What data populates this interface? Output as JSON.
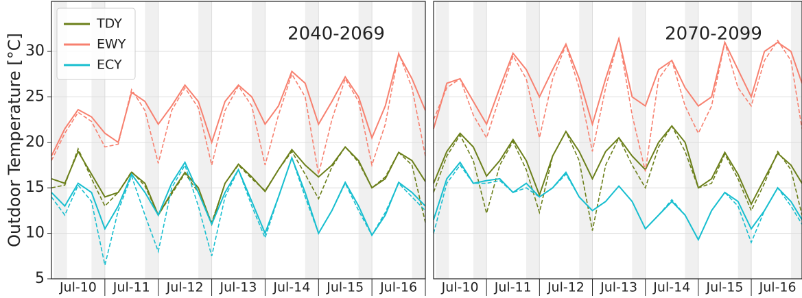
{
  "chart_data": [
    {
      "type": "line",
      "period": "2040-2069",
      "ylabel": "Outdoor Temperature [°C]",
      "legend": "upper left",
      "grid": true,
      "x": [
        0,
        6,
        12,
        18,
        24,
        30,
        36,
        42,
        48,
        54,
        60,
        66,
        72,
        78,
        84,
        90,
        96,
        102,
        108,
        114,
        120,
        126,
        132,
        138,
        144,
        150,
        156,
        162,
        168
      ],
      "xlim": [
        0,
        168
      ],
      "xticks": [
        24,
        48,
        72,
        96,
        120,
        144,
        168
      ],
      "categories": [
        "Jul-10",
        "Jul-11",
        "Jul-12",
        "Jul-13",
        "Jul-14",
        "Jul-15",
        "Jul-16"
      ],
      "ylim": [
        5,
        35.5
      ],
      "yticks": [
        5,
        10,
        15,
        20,
        25,
        30
      ],
      "series": [
        {
          "name": "TDY",
          "color": "#6b7f1a",
          "values": [
            16,
            15.5,
            19,
            16.5,
            14,
            14.5,
            16.7,
            15.5,
            12,
            14.5,
            16.7,
            15,
            11,
            15.5,
            17.6,
            16.2,
            14.6,
            17,
            19.2,
            17.5,
            16.2,
            17.5,
            19.5,
            18,
            15,
            16,
            18.9,
            18,
            15.7
          ],
          "dashed_values": [
            15,
            15.3,
            19.3,
            16,
            13,
            14.5,
            16.8,
            15.2,
            12,
            14.3,
            16.6,
            14.5,
            11.2,
            15.5,
            17.5,
            16,
            14.7,
            17,
            19,
            16.5,
            13.8,
            17.3,
            19.5,
            17.8,
            15,
            16.2,
            18.9,
            17.5,
            11.2
          ]
        },
        {
          "name": "EWY",
          "color": "#f7806f",
          "values": [
            18.5,
            21.5,
            23.6,
            22.8,
            21,
            20,
            25.5,
            24.5,
            22,
            24,
            26.3,
            24.5,
            20,
            24.5,
            26.3,
            25,
            22,
            24,
            27.8,
            26.5,
            22,
            24.5,
            27.2,
            25,
            20.5,
            24,
            29.7,
            27,
            23.5
          ],
          "dashed_values": [
            18,
            21,
            23.3,
            22.3,
            19.5,
            19.8,
            25.8,
            23.5,
            17.7,
            23.5,
            26,
            23.8,
            17.5,
            23.5,
            26.2,
            24,
            17.5,
            23,
            27.5,
            25,
            16.5,
            22.5,
            27,
            24.5,
            17.5,
            22,
            29.8,
            26,
            18.5
          ]
        },
        {
          "name": "ECY",
          "color": "#17becf",
          "values": [
            14.5,
            13,
            15.5,
            14.5,
            10.5,
            13,
            16.5,
            14.5,
            12,
            15.5,
            17.8,
            14.5,
            11,
            14.5,
            17,
            13.5,
            10,
            14,
            18.3,
            14.5,
            10,
            12.5,
            15.6,
            13,
            9.8,
            12,
            15.6,
            14.5,
            13
          ],
          "dashed_values": [
            14,
            12,
            15.3,
            13.5,
            6.5,
            12.5,
            16.3,
            12,
            8,
            15,
            17.5,
            13,
            7.5,
            14,
            17,
            13,
            9.5,
            14,
            18.3,
            14,
            10,
            12.5,
            15.5,
            12.5,
            9.8,
            12.3,
            15.5,
            14,
            12.5
          ]
        }
      ]
    },
    {
      "type": "line",
      "period": "2070-2099",
      "grid": true,
      "x": [
        0,
        6,
        12,
        18,
        24,
        30,
        36,
        42,
        48,
        54,
        60,
        66,
        72,
        78,
        84,
        90,
        96,
        102,
        108,
        114,
        120,
        126,
        132,
        138,
        144,
        150,
        156,
        162,
        167
      ],
      "xlim": [
        0,
        167
      ],
      "xticks": [
        24,
        48,
        72,
        96,
        120,
        144
      ],
      "categories": [
        "Jul-10",
        "Jul-11",
        "Jul-12",
        "Jul-13",
        "Jul-14",
        "Jul-15",
        "Jul-16"
      ],
      "ylim": [
        5,
        35.5
      ],
      "yticks": [
        5,
        10,
        15,
        20,
        25,
        30
      ],
      "series": [
        {
          "color": "#6b7f1a",
          "values": [
            15.5,
            19,
            21,
            19.5,
            16.3,
            18,
            20.3,
            18,
            14.2,
            18.5,
            21.2,
            19,
            16,
            19,
            20.5,
            18.5,
            17,
            20,
            21.8,
            20,
            15,
            16,
            18.9,
            16.5,
            13.2,
            16,
            18.8,
            17.5,
            15.5
          ],
          "dashed_values": [
            14.5,
            18.5,
            20.8,
            18,
            12.2,
            17.5,
            20.1,
            17,
            12.3,
            18.5,
            21.2,
            18,
            10.3,
            17.5,
            20.5,
            17.5,
            15,
            19.5,
            21.8,
            19,
            15,
            15.5,
            18.7,
            16,
            12.5,
            15.5,
            19,
            17,
            12
          ]
        },
        {
          "color": "#f7806f",
          "values": [
            21.5,
            26.5,
            27,
            24.5,
            22,
            26,
            29.8,
            28,
            25,
            28,
            30.8,
            27,
            22,
            27,
            31.4,
            25,
            24,
            28,
            29,
            26,
            24,
            25,
            31,
            28,
            25,
            30,
            31,
            30,
            26.5
          ],
          "dashed_values": [
            22.5,
            26,
            27,
            23,
            20.5,
            25,
            29.5,
            27,
            20.5,
            27,
            30.7,
            26,
            19,
            26,
            31.5,
            23,
            16.8,
            27,
            29,
            24,
            21,
            24,
            31,
            26,
            24,
            29,
            31.2,
            29,
            21.5
          ]
        },
        {
          "color": "#17becf",
          "values": [
            11.5,
            16,
            17.8,
            15.5,
            15.8,
            16,
            14.5,
            15.5,
            14,
            15,
            16.7,
            14,
            12.5,
            13.5,
            15.2,
            13.5,
            10.5,
            12,
            13.5,
            12,
            9.3,
            12.5,
            14.5,
            13.5,
            10.5,
            12.5,
            15,
            13.5,
            11.5
          ],
          "dashed_values": [
            10,
            15.5,
            17.5,
            15.5,
            15.5,
            15.8,
            14.5,
            15,
            14,
            15,
            16.5,
            14,
            12.5,
            13.5,
            15.2,
            13.5,
            10.5,
            12,
            13.7,
            12,
            9.3,
            12.5,
            14.5,
            13,
            9,
            12.5,
            15,
            13,
            11
          ]
        }
      ]
    }
  ]
}
